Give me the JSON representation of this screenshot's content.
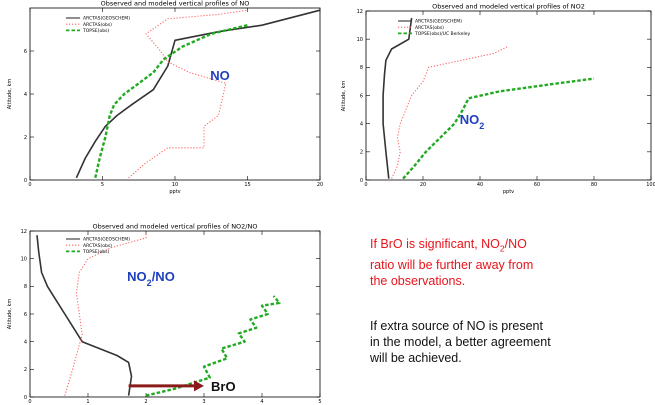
{
  "chart_data": [
    {
      "type": "line",
      "title": "Observed and modeled vertical profiles of NO",
      "xlabel": "pptv",
      "ylabel": "Altitude, km",
      "xlim": [
        0,
        20
      ],
      "ylim": [
        0,
        8
      ],
      "xticks": [
        "0",
        "5",
        "10",
        "15",
        "20"
      ],
      "yticks": [
        "0",
        "2",
        "4",
        "6"
      ],
      "annotation": "NO",
      "series": [
        {
          "name": "ARCTAS(GEOSCHEM)",
          "color": "#333333",
          "style": "solid",
          "x": [
            3.2,
            3.8,
            4.5,
            5.2,
            6.0,
            7.0,
            8.5,
            9.5,
            10.0,
            13.0,
            16.0,
            20.0
          ],
          "y": [
            0.1,
            1.0,
            1.8,
            2.5,
            3.0,
            3.5,
            4.2,
            5.3,
            6.5,
            6.9,
            7.2,
            7.9
          ]
        },
        {
          "name": "ARCTAS(obs)",
          "color": "#ff6666",
          "style": "dotted",
          "x": [
            6.8,
            8.0,
            9.5,
            12.0,
            12.0,
            13.0,
            13.5,
            11.0,
            9.5,
            9.0,
            8.0,
            9.5,
            13.0,
            15.0
          ],
          "y": [
            0.1,
            0.8,
            1.5,
            1.5,
            2.5,
            3.0,
            4.5,
            5.0,
            5.5,
            6.0,
            6.8,
            7.5,
            7.7,
            7.9
          ]
        },
        {
          "name": "TOPSE(obs)",
          "color": "#22aa22",
          "style": "dashed",
          "x": [
            4.5,
            4.8,
            5.2,
            5.5,
            5.8,
            6.5,
            7.5,
            8.5,
            9.2,
            10.5,
            12.5,
            15.0
          ],
          "y": [
            0.1,
            1.0,
            2.0,
            3.0,
            3.5,
            4.0,
            4.5,
            5.0,
            5.6,
            6.2,
            6.8,
            7.2
          ]
        }
      ]
    },
    {
      "type": "line",
      "title": "Observed and modeled vertical profiles of NO2",
      "xlabel": "pptv",
      "ylabel": "Altitude, km",
      "xlim": [
        0,
        100
      ],
      "ylim": [
        0,
        12
      ],
      "xticks": [
        "0",
        "20",
        "40",
        "60",
        "80",
        "100"
      ],
      "yticks": [
        "0",
        "2",
        "4",
        "6",
        "8",
        "10",
        "12"
      ],
      "annotation": "NO",
      "annotation_sub": "2",
      "series": [
        {
          "name": "ARCTAS(GEOSCHEM)",
          "color": "#333333",
          "style": "solid",
          "x": [
            8.0,
            7.5,
            7.0,
            6.5,
            6.0,
            6.0,
            6.5,
            7.0,
            9.0,
            15.0,
            16.0
          ],
          "y": [
            0.1,
            1.0,
            2.0,
            3.0,
            4.0,
            6.0,
            7.5,
            8.5,
            9.3,
            10.0,
            11.5
          ]
        },
        {
          "name": "ARCTAS(obs)",
          "color": "#ff6666",
          "style": "dotted",
          "x": [
            9.0,
            11.0,
            12.0,
            11.0,
            12.0,
            14.0,
            16.0,
            20.0,
            22.0,
            45.0,
            50.0
          ],
          "y": [
            0.1,
            1.0,
            2.0,
            3.0,
            4.0,
            5.0,
            6.0,
            7.0,
            8.0,
            9.0,
            9.5
          ]
        },
        {
          "name": "TOPSE(obs)/UC Berkeley",
          "color": "#22aa22",
          "style": "dashed",
          "x": [
            13.0,
            17.0,
            21.0,
            26.0,
            31.0,
            34.0,
            36.0,
            47.0,
            65.0,
            80.0
          ],
          "y": [
            0.1,
            1.0,
            2.0,
            3.0,
            4.0,
            5.0,
            5.8,
            6.3,
            6.8,
            7.2
          ]
        }
      ]
    },
    {
      "type": "line",
      "title": "Observed and modeled vertical profiles of NO2/NO",
      "xlabel": "",
      "ylabel": "Altitude, km",
      "xlim": [
        0,
        5
      ],
      "ylim": [
        0,
        12
      ],
      "xticks": [
        "0",
        "1",
        "2",
        "3",
        "4",
        "5"
      ],
      "yticks": [
        "0",
        "2",
        "4",
        "6",
        "8",
        "10",
        "12"
      ],
      "annotation": "NO",
      "annotation_sub": "2",
      "annotation_tail": "/NO",
      "arrow_label": "BrO",
      "arrow_from": [
        1.7,
        0.8
      ],
      "arrow_to": [
        3.0,
        0.8
      ],
      "series": [
        {
          "name": "ARCTAS(GEOSCHEM)",
          "color": "#333333",
          "style": "solid",
          "x": [
            0.12,
            0.15,
            0.2,
            0.3,
            0.45,
            0.6,
            0.75,
            0.9,
            1.2,
            1.5,
            1.7,
            1.75,
            1.7
          ],
          "y": [
            11.7,
            10.5,
            9.0,
            8.0,
            7.0,
            6.0,
            5.0,
            4.0,
            3.5,
            3.0,
            2.5,
            1.5,
            0.1
          ]
        },
        {
          "name": "ARCTAS(obs)",
          "color": "#ff6666",
          "style": "dotted",
          "x": [
            0.6,
            0.7,
            0.8,
            0.9,
            0.85,
            0.8,
            0.85,
            1.0,
            1.4,
            2.0,
            2.0
          ],
          "y": [
            0.1,
            1.5,
            3.0,
            4.5,
            6.0,
            7.5,
            9.0,
            10.0,
            10.8,
            11.5,
            11.8
          ]
        },
        {
          "name": "TOPSE(obs)",
          "color": "#22aa22",
          "style": "dashed",
          "x": [
            2.0,
            2.5,
            3.1,
            3.0,
            3.4,
            3.3,
            3.7,
            3.6,
            3.9,
            3.8,
            4.1,
            4.0,
            4.3,
            4.2
          ],
          "y": [
            0.1,
            0.6,
            1.4,
            2.2,
            2.8,
            3.5,
            4.0,
            4.6,
            5.0,
            5.6,
            6.0,
            6.6,
            6.8,
            7.3
          ]
        }
      ]
    }
  ],
  "notes": {
    "bro_line1_pre": "If BrO is significant, NO",
    "bro_line1_sub": "2",
    "bro_line1_post": "/NO",
    "bro_line2": "ratio will be further away from",
    "bro_line3": "the observations.",
    "extra_line1": "If extra source of NO is present",
    "extra_line2": "in the model, a better agreement",
    "extra_line3": "will be achieved."
  }
}
